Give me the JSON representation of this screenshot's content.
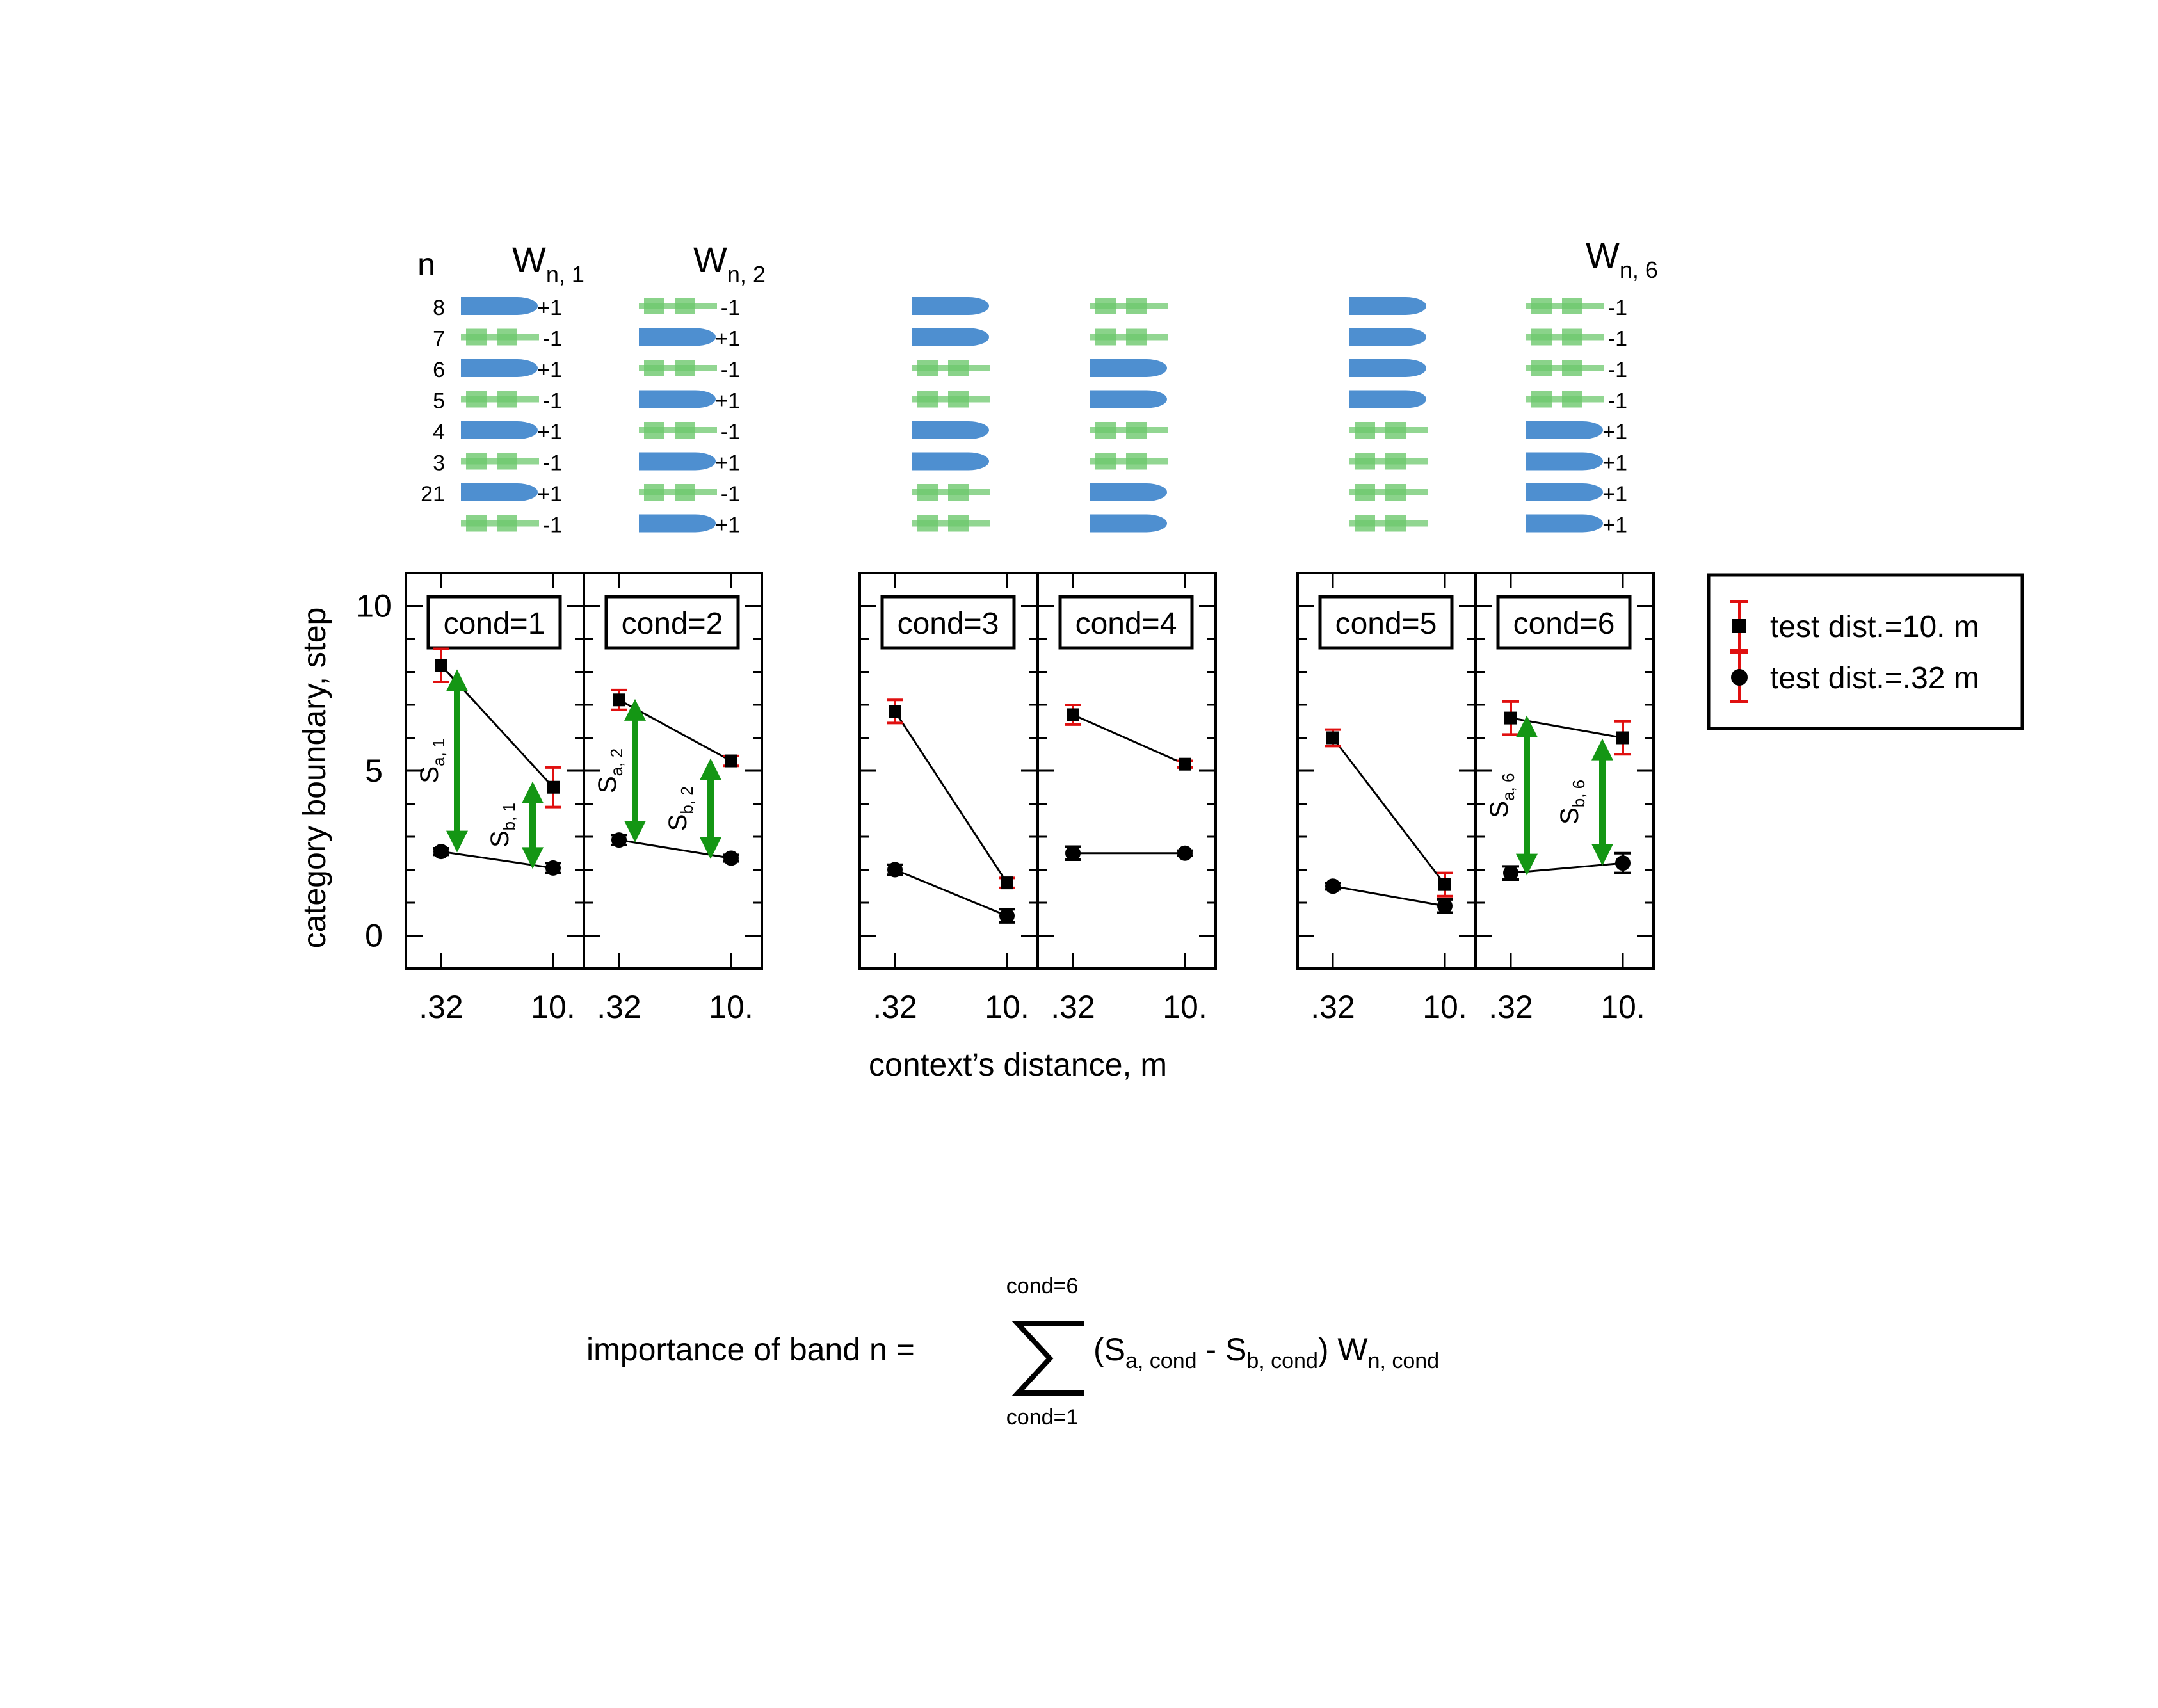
{
  "ylabel": "category boundary, step",
  "xlabel": "context’s distance, m",
  "tick_labels_y": [
    "10",
    "5",
    "0"
  ],
  "tick_labels_x": [
    ".32",
    "10."
  ],
  "colors": {
    "square_series_errorbar": "#e01010",
    "arrow": "#149614",
    "blue_band": "#4e8fd0",
    "green_band": "#6dc86d"
  },
  "weights": {
    "n_label": "n",
    "band_numbers": [
      "8",
      "7",
      "6",
      "5",
      "4",
      "3",
      "21"
    ],
    "headers": [
      {
        "w": "W",
        "sub": "n, 1"
      },
      {
        "w": "W",
        "sub": "n, 2"
      },
      {
        "w": "W",
        "sub": "n, 6"
      }
    ],
    "columns": [
      {
        "cond": 1,
        "values": [
          "+1",
          "-1",
          "+1",
          "-1",
          "+1",
          "-1",
          "+1",
          "-1"
        ]
      },
      {
        "cond": 2,
        "values": [
          "-1",
          "+1",
          "-1",
          "+1",
          "-1",
          "+1",
          "-1",
          "+1"
        ]
      },
      {
        "cond": 3,
        "values": [
          "+1",
          "+1",
          "-1",
          "-1",
          "+1",
          "+1",
          "-1",
          "-1"
        ]
      },
      {
        "cond": 4,
        "values": [
          "-1",
          "-1",
          "+1",
          "+1",
          "-1",
          "-1",
          "+1",
          "+1"
        ]
      },
      {
        "cond": 5,
        "values": [
          "+1",
          "+1",
          "+1",
          "+1",
          "-1",
          "-1",
          "-1",
          "-1"
        ]
      },
      {
        "cond": 6,
        "values": [
          "-1",
          "-1",
          "-1",
          "-1",
          "+1",
          "+1",
          "+1",
          "+1"
        ]
      }
    ]
  },
  "legend": {
    "items": [
      {
        "marker": "square",
        "label": "test dist.=10. m"
      },
      {
        "marker": "circle",
        "label": "test dist.=.32 m"
      }
    ]
  },
  "chart_data": {
    "type": "line",
    "ylim": [
      -1,
      11
    ],
    "x": [
      ".32",
      "10."
    ],
    "panels": [
      {
        "title": "cond=1",
        "squares": [
          8.2,
          4.5
        ],
        "square_err": [
          0.5,
          0.6
        ],
        "circles": [
          2.55,
          2.05
        ],
        "circle_err": [
          0.1,
          0.15
        ],
        "arrows": [
          {
            "label_s": "S",
            "label_sub": "a, 1",
            "from": 8.0,
            "to": 2.6,
            "at": 0
          },
          {
            "label_s": "S",
            "label_sub": "b, 1",
            "from": 4.6,
            "to": 2.1,
            "at": 1
          }
        ]
      },
      {
        "title": "cond=2",
        "squares": [
          7.15,
          5.3
        ],
        "square_err": [
          0.3,
          0.15
        ],
        "circles": [
          2.9,
          2.35
        ],
        "circle_err": [
          0.15,
          0.1
        ],
        "arrows": [
          {
            "label_s": "S",
            "label_sub": "a, 2",
            "from": 7.1,
            "to": 2.9,
            "at": 0
          },
          {
            "label_s": "S",
            "label_sub": "b, 2",
            "from": 5.3,
            "to": 2.4,
            "at": 1
          }
        ]
      },
      {
        "title": "cond=3",
        "squares": [
          6.8,
          1.6
        ],
        "square_err": [
          0.35,
          0.15
        ],
        "circles": [
          2.0,
          0.6
        ],
        "circle_err": [
          0.15,
          0.2
        ],
        "arrows": []
      },
      {
        "title": "cond=4",
        "squares": [
          6.7,
          5.2
        ],
        "square_err": [
          0.3,
          0.1
        ],
        "circles": [
          2.5,
          2.5
        ],
        "circle_err": [
          0.2,
          0.08
        ],
        "arrows": []
      },
      {
        "title": "cond=5",
        "squares": [
          6.0,
          1.55
        ],
        "square_err": [
          0.25,
          0.35
        ],
        "circles": [
          1.5,
          0.9
        ],
        "circle_err": [
          0.1,
          0.2
        ],
        "arrows": []
      },
      {
        "title": "cond=6",
        "squares": [
          6.6,
          6.0
        ],
        "square_err": [
          0.5,
          0.5
        ],
        "circles": [
          1.9,
          2.2
        ],
        "circle_err": [
          0.2,
          0.3
        ],
        "arrows": [
          {
            "label_s": "S",
            "label_sub": "a, 6",
            "from": 6.6,
            "to": 1.9,
            "at": 0
          },
          {
            "label_s": "S",
            "label_sub": "b, 6",
            "from": 5.9,
            "to": 2.2,
            "at": 1
          }
        ]
      }
    ]
  },
  "formula": {
    "lhs": "importance of band n =",
    "sum_upper": "cond=6",
    "sum_lower": "cond=1",
    "open": "(S",
    "sub_a": "a, cond",
    "minus": " - S",
    "sub_b": "b, cond",
    "close": ") W",
    "sub_w": "n, cond"
  }
}
